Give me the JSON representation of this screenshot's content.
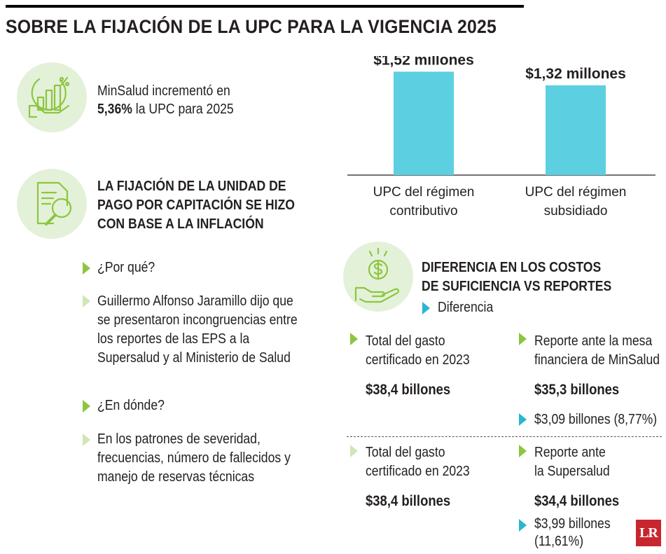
{
  "title": "SOBRE LA FIJACIÓN DE LA UPC PARA LA VIGENCIA 2025",
  "intro": {
    "line1": "MinSalud incrementó en",
    "pct": "5,36%",
    "line2_rest": " la UPC para 2025"
  },
  "section1": {
    "heading": [
      "LA FIJACIÓN DE LA UNIDAD DE",
      "PAGO POR CAPITACIÓN SE HIZO",
      "CON BASE A LA INFLACIÓN"
    ],
    "q1": "¿Por qué?",
    "a1": [
      "Guillermo Alfonso Jaramillo dijo que",
      "se presentaron incongruencias entre",
      "los reportes de las EPS a la",
      "Supersalud y al Ministerio de Salud"
    ],
    "q2": "¿En dónde?",
    "a2": [
      "En los patrones de severidad,",
      "frecuencias, número de fallecidos y",
      "manejo de reservas técnicas"
    ]
  },
  "chart_data": {
    "type": "bar",
    "categories": [
      "UPC del régimen contributivo",
      "UPC del régimen subsidiado"
    ],
    "category_lines": [
      [
        "UPC del régimen",
        "contributivo"
      ],
      [
        "UPC del régimen",
        "subsidiado"
      ]
    ],
    "values": [
      1.52,
      1.32
    ],
    "value_labels": [
      "$1,52 millones",
      "$1,32 millones"
    ],
    "unit": "millones",
    "bar_color": "#5ccfe0",
    "ylim": [
      0,
      1.75
    ]
  },
  "section2": {
    "heading": [
      "DIFERENCIA EN LOS COSTOS",
      "DE SUFICIENCIA VS REPORTES"
    ],
    "legend": "Diferencia",
    "row1": {
      "left_label": [
        "Total del gasto",
        "certificado en 2023"
      ],
      "left_value": "$38,4 billones",
      "right_label": [
        "Reporte ante la mesa",
        "financiera de MinSalud"
      ],
      "right_value": "$35,3 billones",
      "diff": "$3,09 billones (8,77%)"
    },
    "row2": {
      "left_label": [
        "Total del gasto",
        "certificado en 2023"
      ],
      "left_value": "$38,4 billones",
      "right_label": [
        "Reporte ante",
        "la Supersalud"
      ],
      "right_value": "$34,4 billones",
      "diff": [
        "$3,99 billones",
        "(11,61%)"
      ]
    }
  },
  "logo": "LR",
  "colors": {
    "green": "#8cc63f",
    "light_green": "#e4f1d9",
    "blue": "#29b6d1",
    "bar": "#5ccfe0"
  }
}
